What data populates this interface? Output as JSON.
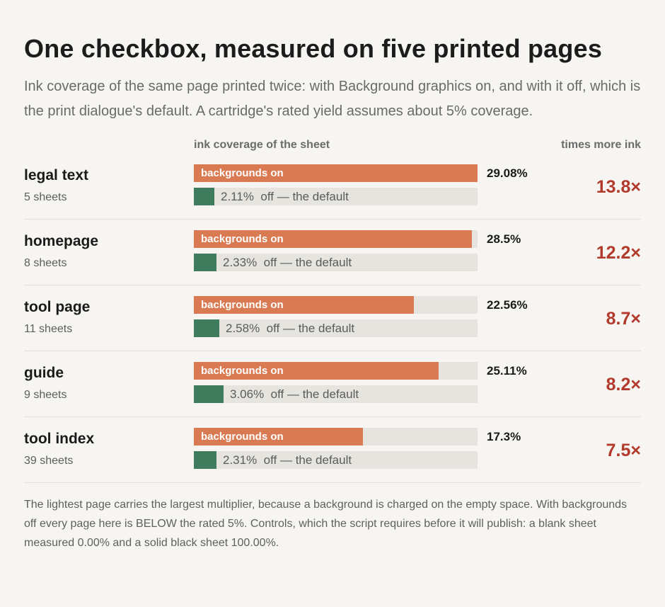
{
  "header": {
    "title": "One checkbox, measured on five printed pages",
    "subtitle": "Ink coverage of the same page printed twice: with Background graphics on, and with it off, which is the print dialogue's default. A cartridge's rated yield assumes about 5% coverage."
  },
  "columns": {
    "coverage": "ink coverage of the sheet",
    "multiplier": "times more ink"
  },
  "labels": {
    "on": "backgrounds on",
    "off_suffix": "off — the default"
  },
  "colors": {
    "on": "#d97a52",
    "off": "#3f7c5d",
    "multiplier": "#b23a2c",
    "track": "#e6e4df"
  },
  "chart_data": {
    "type": "bar",
    "title": "One checkbox, measured on five printed pages",
    "categories": [
      "legal text",
      "homepage",
      "tool page",
      "guide",
      "tool index"
    ],
    "sheets": [
      "5 sheets",
      "8 sheets",
      "11 sheets",
      "9 sheets",
      "39 sheets"
    ],
    "series": [
      {
        "name": "backgrounds on",
        "values": [
          29.08,
          28.5,
          22.56,
          25.11,
          17.3
        ],
        "labels": [
          "29.08%",
          "28.5%",
          "22.56%",
          "25.11%",
          "17.3%"
        ]
      },
      {
        "name": "off — the default",
        "values": [
          2.11,
          2.33,
          2.58,
          3.06,
          2.31
        ],
        "labels": [
          "2.11%",
          "2.33%",
          "2.58%",
          "3.06%",
          "2.31%"
        ]
      }
    ],
    "multipliers": [
      "13.8×",
      "12.2×",
      "8.7×",
      "8.2×",
      "7.5×"
    ],
    "xlim": [
      0,
      29.08
    ]
  },
  "footnote": "The lightest page carries the largest multiplier, because a background is charged on the empty space. With backgrounds off every page here is BELOW the rated 5%. Controls, which the script requires before it will publish: a blank sheet measured 0.00% and a solid black sheet 100.00%."
}
